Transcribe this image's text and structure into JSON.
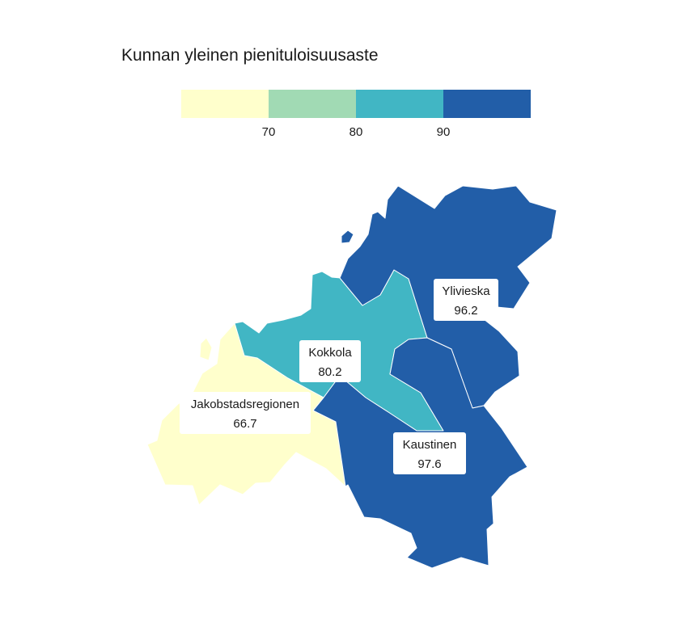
{
  "map": {
    "title": "Kunnan yleinen pienituloisuusaste",
    "legend": {
      "colors": [
        "#ffffcc",
        "#a1dab4",
        "#41b6c4",
        "#225ea8"
      ],
      "ticks": [
        "70",
        "80",
        "90"
      ]
    },
    "regions": [
      {
        "name": "Jakobstadsregionen",
        "value": "66.7",
        "color": "#ffffcc"
      },
      {
        "name": "Kokkola",
        "value": "80.2",
        "color": "#41b6c4"
      },
      {
        "name": "Ylivieska",
        "value": "96.2",
        "color": "#225ea8"
      },
      {
        "name": "Kaustinen",
        "value": "97.6",
        "color": "#225ea8"
      }
    ]
  }
}
